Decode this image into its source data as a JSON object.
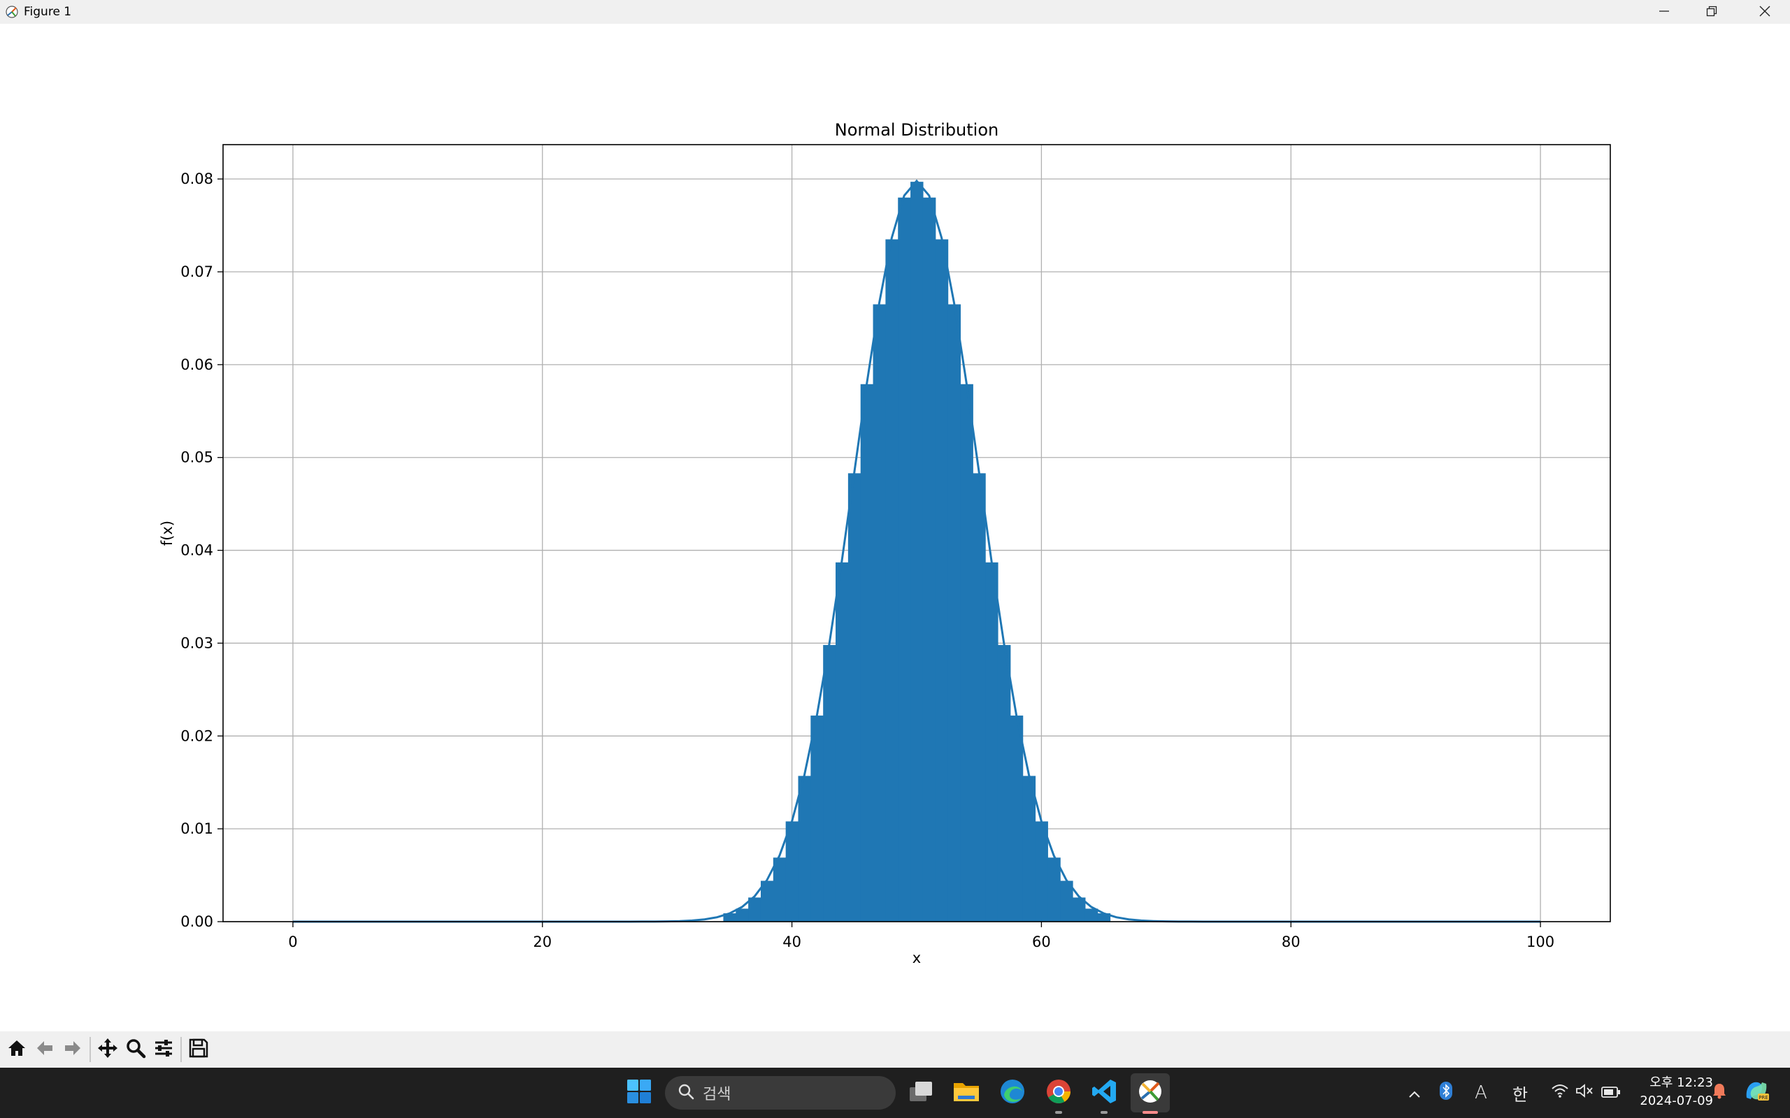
{
  "window": {
    "title": "Figure 1"
  },
  "toolbar": {
    "buttons": [
      "home-icon",
      "back-icon",
      "forward-icon",
      "pan-icon",
      "zoom-icon",
      "configure-icon",
      "save-icon"
    ]
  },
  "chart_data": {
    "type": "bar",
    "title": "Normal Distribution",
    "xlabel": "x",
    "ylabel": "f(x)",
    "xlim": [
      -5.6,
      105.6
    ],
    "ylim": [
      0,
      0.0837
    ],
    "xticks": [
      "0",
      "20",
      "40",
      "60",
      "80",
      "100"
    ],
    "yticks": [
      "0.00",
      "0.01",
      "0.02",
      "0.03",
      "0.04",
      "0.05",
      "0.06",
      "0.07",
      "0.08"
    ],
    "grid": true,
    "color": "#1f77b4",
    "histogram": {
      "bin_width": 1,
      "bins": [
        {
          "x": 35,
          "y": 0.0009
        },
        {
          "x": 36,
          "y": 0.0014
        },
        {
          "x": 37,
          "y": 0.0026
        },
        {
          "x": 38,
          "y": 0.0044
        },
        {
          "x": 39,
          "y": 0.0069
        },
        {
          "x": 40,
          "y": 0.0108
        },
        {
          "x": 41,
          "y": 0.0157
        },
        {
          "x": 42,
          "y": 0.0222
        },
        {
          "x": 43,
          "y": 0.0298
        },
        {
          "x": 44,
          "y": 0.0387
        },
        {
          "x": 45,
          "y": 0.0483
        },
        {
          "x": 46,
          "y": 0.0579
        },
        {
          "x": 47,
          "y": 0.0665
        },
        {
          "x": 48,
          "y": 0.0735
        },
        {
          "x": 49,
          "y": 0.078
        },
        {
          "x": 50,
          "y": 0.0797
        },
        {
          "x": 51,
          "y": 0.078
        },
        {
          "x": 52,
          "y": 0.0735
        },
        {
          "x": 53,
          "y": 0.0665
        },
        {
          "x": 54,
          "y": 0.0579
        },
        {
          "x": 55,
          "y": 0.0483
        },
        {
          "x": 56,
          "y": 0.0387
        },
        {
          "x": 57,
          "y": 0.0298
        },
        {
          "x": 58,
          "y": 0.0222
        },
        {
          "x": 59,
          "y": 0.0157
        },
        {
          "x": 60,
          "y": 0.0108
        },
        {
          "x": 61,
          "y": 0.0069
        },
        {
          "x": 62,
          "y": 0.0044
        },
        {
          "x": 63,
          "y": 0.0026
        },
        {
          "x": 64,
          "y": 0.0014
        },
        {
          "x": 65,
          "y": 0.0009
        }
      ]
    },
    "curve": {
      "mean": 50,
      "std": 5,
      "x_range": [
        0,
        100
      ]
    }
  },
  "taskbar": {
    "search_placeholder": "검색",
    "apps": [
      "windows-start-icon",
      "task-view-icon",
      "file-explorer-icon",
      "edge-icon",
      "chrome-icon",
      "vscode-icon",
      "matplotlib-figure-icon"
    ],
    "tray": {
      "ime_mode": "A",
      "ime_lang": "한",
      "time_label": "오후 12:23",
      "date_label": "2024-07-09"
    }
  }
}
